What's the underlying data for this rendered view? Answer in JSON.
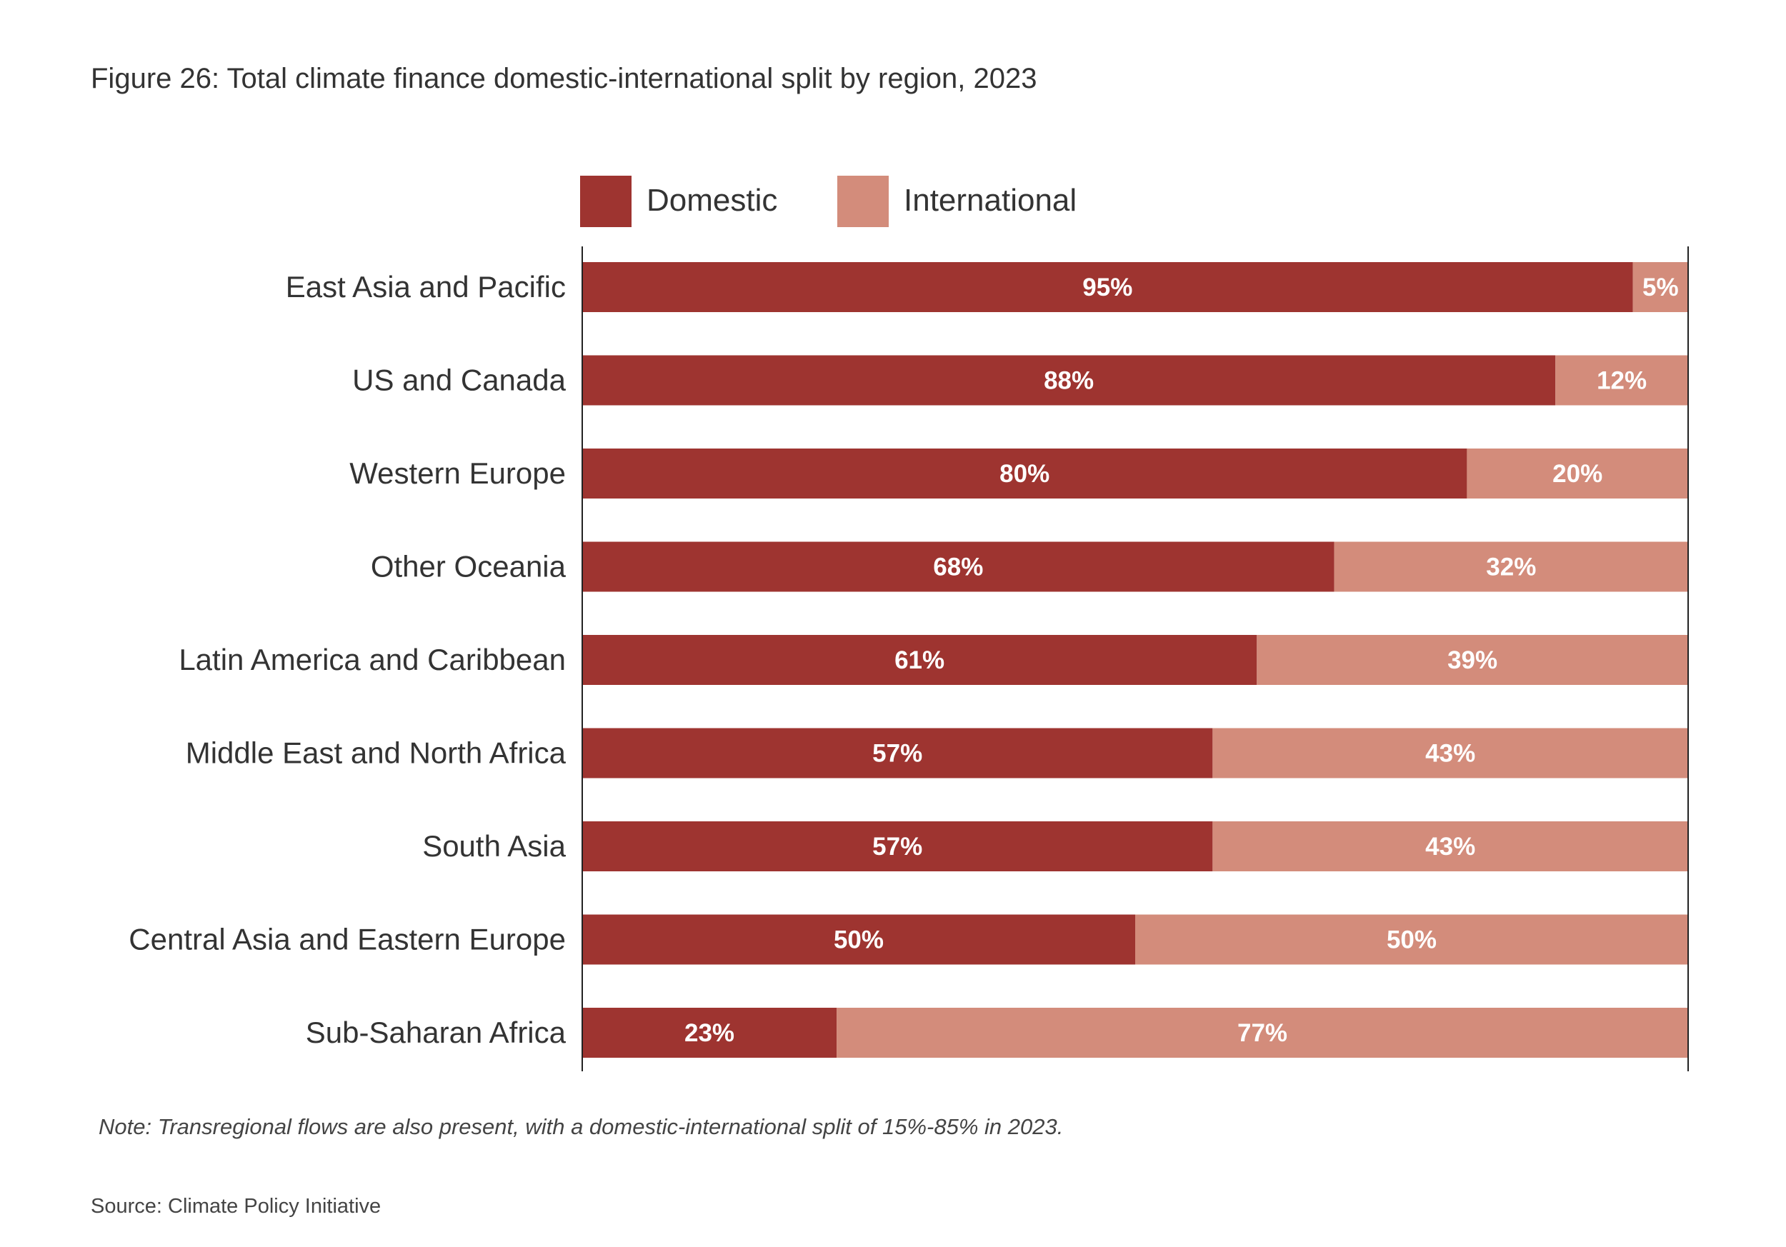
{
  "chart_data": {
    "type": "bar",
    "orientation": "horizontal",
    "stacked": true,
    "title": "Figure 26: Total climate finance domestic-international split by region, 2023",
    "xlabel": "",
    "ylabel": "",
    "xlim": [
      0,
      100
    ],
    "grid": false,
    "legend_position": "top",
    "categories": [
      "East Asia and Pacific",
      "US and Canada",
      "Western Europe",
      "Other Oceania",
      "Latin America and Caribbean",
      "Middle East and North Africa",
      "South Asia",
      "Central Asia and Eastern Europe",
      "Sub-Saharan Africa"
    ],
    "series": [
      {
        "name": "Domestic",
        "color": "#9e3430",
        "values": [
          95,
          88,
          80,
          68,
          61,
          57,
          57,
          50,
          23
        ],
        "labels": [
          "95%",
          "88%",
          "80%",
          "68%",
          "61%",
          "57%",
          "57%",
          "50%",
          "23%"
        ]
      },
      {
        "name": "International",
        "color": "#d38c7b",
        "values": [
          5,
          12,
          20,
          32,
          39,
          43,
          43,
          50,
          77
        ],
        "labels": [
          "5%",
          "12%",
          "20%",
          "32%",
          "39%",
          "43%",
          "43%",
          "50%",
          "77%"
        ]
      }
    ],
    "note": "Note: Transregional flows are also present, with a domestic-international split of 15%-85% in 2023.",
    "source": "Source: Climate Policy Initiative"
  }
}
